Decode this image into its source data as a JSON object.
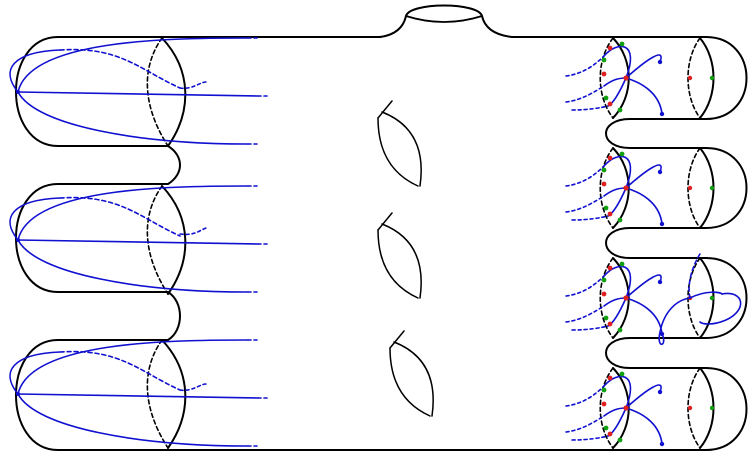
{
  "colors": {
    "surface_outline": "#000000",
    "blue_curve": "#1010d0",
    "red_marker": "#e02020",
    "green_marker": "#10a010"
  },
  "diagram": {
    "left_tubes": 3,
    "right_tubes": 4,
    "interior_handles": 3,
    "top_handle": 1
  }
}
